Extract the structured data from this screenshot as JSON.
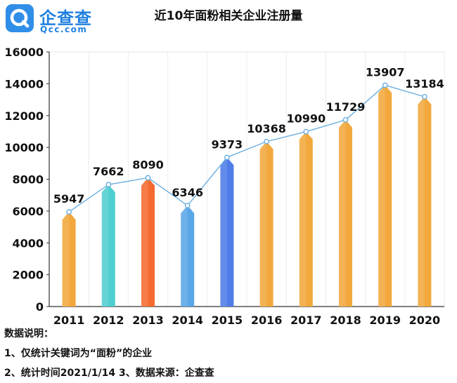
{
  "logo": {
    "name": "企查查",
    "domain": "Qcc.com",
    "icon": "magnifier-q-icon"
  },
  "chart_data": {
    "type": "bar",
    "title": "近10年面粉相关企业注册量",
    "categories": [
      "2011",
      "2012",
      "2013",
      "2014",
      "2015",
      "2016",
      "2017",
      "2018",
      "2019",
      "2020"
    ],
    "values": [
      5947,
      7662,
      8090,
      6346,
      9373,
      10368,
      10990,
      11729,
      13907,
      13184
    ],
    "colors": [
      "#f2a83c",
      "#4fcfcf",
      "#f56a2e",
      "#5aa7e6",
      "#4e7de8",
      "#f2a83c",
      "#f2a83c",
      "#f2a83c",
      "#f2a83c",
      "#f2a83c"
    ],
    "line_color": "#6aaee0",
    "ylim": [
      0,
      16000
    ],
    "yticks": [
      0,
      2000,
      4000,
      6000,
      8000,
      10000,
      12000,
      14000,
      16000
    ],
    "grid": true,
    "overlay_line": true,
    "xlabel": "",
    "ylabel": ""
  },
  "notes": {
    "heading": "数据说明：",
    "line1": "1、仅统计关键词为“面粉”的企业",
    "line2": "2、统计时间2021/1/14    3、数据来源：企查查"
  }
}
